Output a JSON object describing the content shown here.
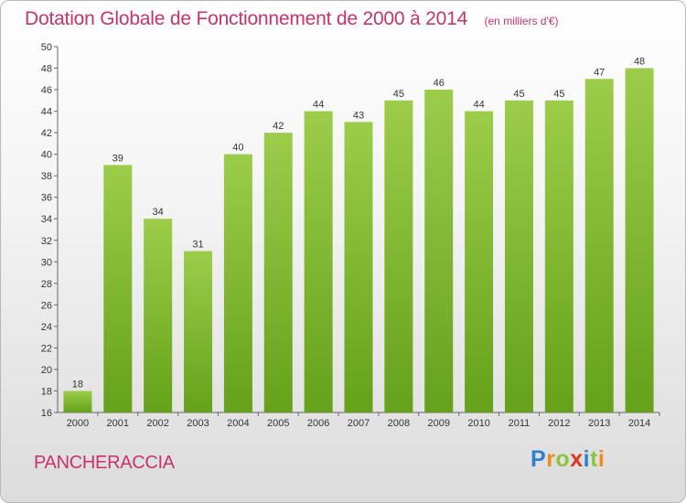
{
  "header": {
    "title": "Dotation Globale de Fonctionnement de 2000 à 2014",
    "unit": "(en milliers d'€)"
  },
  "footer": {
    "commune": "PANCHERACCIA",
    "logo": {
      "text": "Proxiti",
      "letters": [
        "P",
        "r",
        "o",
        "x",
        "i",
        "t",
        "i"
      ],
      "letter_colors": [
        "#2e7fd1",
        "#f08a1c",
        "#8cc63f",
        "#e5331f",
        "#2e7fd1",
        "#8cc63f",
        "#f08a1c"
      ]
    }
  },
  "chart_data": {
    "type": "bar",
    "title": "Dotation Globale de Fonctionnement de 2000 à 2014",
    "subtitle": "(en milliers d'€)",
    "xlabel": "",
    "ylabel": "",
    "categories": [
      "2000",
      "2001",
      "2002",
      "2003",
      "2004",
      "2005",
      "2006",
      "2007",
      "2008",
      "2009",
      "2010",
      "2011",
      "2012",
      "2013",
      "2014"
    ],
    "values": [
      18,
      39,
      34,
      31,
      40,
      42,
      44,
      43,
      45,
      46,
      44,
      45,
      45,
      47,
      48
    ],
    "ylim": [
      16,
      50
    ],
    "yticks": [
      16,
      18,
      20,
      22,
      24,
      26,
      28,
      30,
      32,
      34,
      36,
      38,
      40,
      42,
      44,
      46,
      48,
      50
    ],
    "grid": false,
    "legend": "none",
    "colors": {
      "bar_top": "#9ccd4a",
      "bar_bottom": "#65a11a",
      "axis": "#666666",
      "title": "#c8336e"
    }
  }
}
